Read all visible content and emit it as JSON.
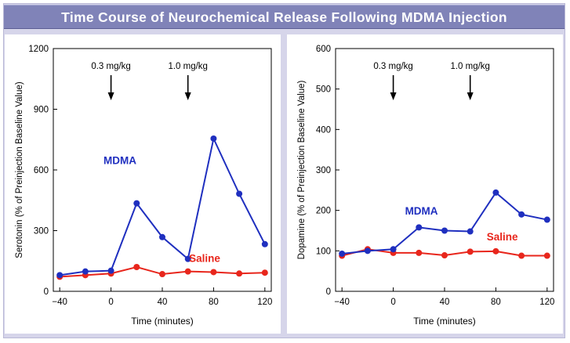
{
  "title": "Time Course of Neurochemical Release Following MDMA Injection",
  "colors": {
    "banner": "#8083b8",
    "background": "#d6d5ea",
    "mdma": "#1f2fbf",
    "saline": "#e8261c"
  },
  "chart_data": [
    {
      "type": "line",
      "ylabel": "Serotonin (% of Preinjection Baseline Value)",
      "xlabel": "Time (minutes)",
      "xlim": [
        -45,
        125
      ],
      "ylim": [
        0,
        1200
      ],
      "xticks": [
        -40,
        0,
        40,
        80,
        120
      ],
      "xtick_labels": [
        "−40",
        "0",
        "40",
        "80",
        "120"
      ],
      "yticks": [
        0,
        300,
        600,
        900,
        1200
      ],
      "ytick_labels": [
        "0",
        "300",
        "600",
        "900",
        "1200"
      ],
      "x": [
        -40,
        -20,
        0,
        20,
        40,
        60,
        80,
        100,
        120
      ],
      "series": [
        {
          "name": "MDMA",
          "color": "#1f2fbf",
          "values": [
            80,
            98,
            102,
            435,
            268,
            160,
            755,
            482,
            233
          ]
        },
        {
          "name": "Saline",
          "color": "#e8261c",
          "values": [
            72,
            80,
            88,
            120,
            85,
            98,
            95,
            88,
            92
          ]
        }
      ],
      "annotations": [
        {
          "text": "0.3 mg/kg",
          "x": 0
        },
        {
          "text": "1.0 mg/kg",
          "x": 60
        }
      ],
      "series_labels": [
        {
          "text": "MDMA",
          "x": 7,
          "y": 630
        },
        {
          "text": "Saline",
          "x": 73,
          "y": 145
        }
      ],
      "grid": false
    },
    {
      "type": "line",
      "ylabel": "Dopamine (% of Preinjection Baseline Value)",
      "xlabel": "Time (minutes)",
      "xlim": [
        -45,
        125
      ],
      "ylim": [
        0,
        600
      ],
      "xticks": [
        -40,
        0,
        40,
        80,
        120
      ],
      "xtick_labels": [
        "−40",
        "0",
        "40",
        "80",
        "120"
      ],
      "yticks": [
        0,
        100,
        200,
        300,
        400,
        500,
        600
      ],
      "ytick_labels": [
        "0",
        "100",
        "200",
        "300",
        "400",
        "500",
        "600"
      ],
      "x": [
        -40,
        -20,
        0,
        20,
        40,
        60,
        80,
        100,
        120
      ],
      "series": [
        {
          "name": "MDMA",
          "color": "#1f2fbf",
          "values": [
            93,
            100,
            104,
            158,
            150,
            148,
            244,
            190,
            177
          ]
        },
        {
          "name": "Saline",
          "color": "#e8261c",
          "values": [
            88,
            104,
            95,
            95,
            89,
            98,
            99,
            88,
            88
          ]
        }
      ],
      "annotations": [
        {
          "text": "0.3 mg/kg",
          "x": 0
        },
        {
          "text": "1.0 mg/kg",
          "x": 60
        }
      ],
      "series_labels": [
        {
          "text": "MDMA",
          "x": 22,
          "y": 190
        },
        {
          "text": "Saline",
          "x": 85,
          "y": 126
        }
      ],
      "grid": false
    }
  ]
}
